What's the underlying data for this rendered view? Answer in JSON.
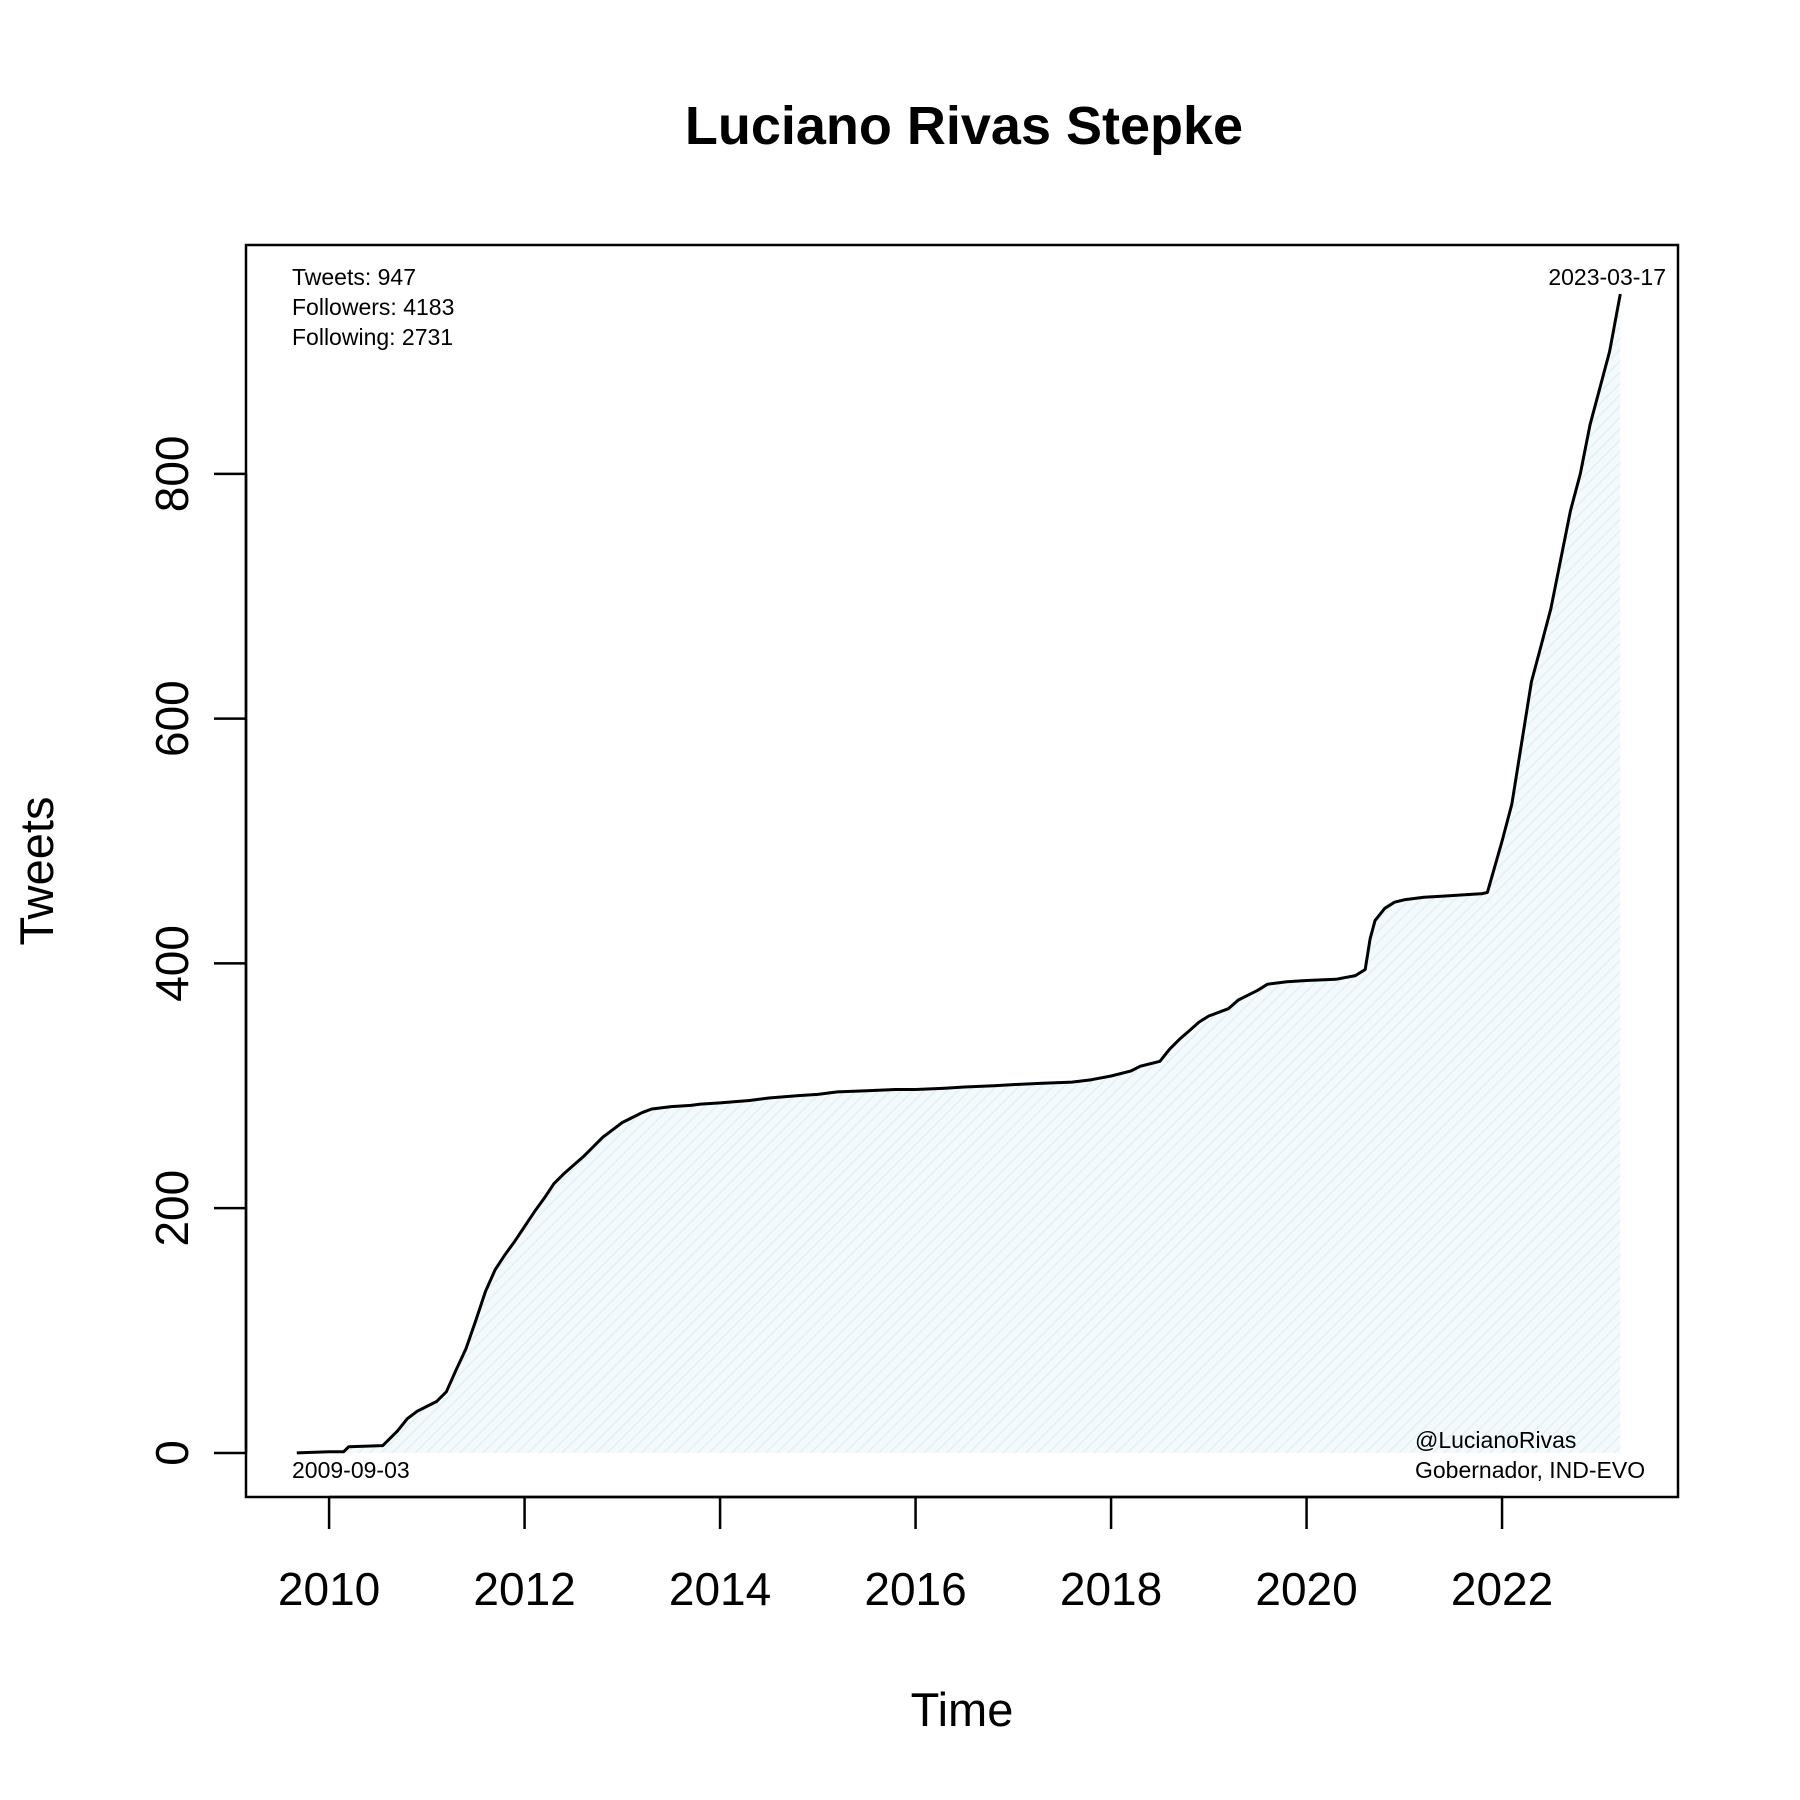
{
  "chart_data": {
    "type": "area",
    "title": "Luciano Rivas Stepke",
    "xlabel": "Time",
    "ylabel": "Tweets",
    "xlim": [
      2009.15,
      2023.8
    ],
    "ylim": [
      -36,
      987
    ],
    "x_ticks": [
      2010,
      2012,
      2014,
      2016,
      2018,
      2020,
      2022
    ],
    "x_tick_labels": [
      "2010",
      "2012",
      "2014",
      "2016",
      "2018",
      "2020",
      "2022"
    ],
    "y_ticks": [
      0,
      200,
      400,
      600,
      800
    ],
    "y_tick_labels": [
      "0",
      "200",
      "400",
      "600",
      "800"
    ],
    "grid": false,
    "fill_color": "#e6f4f8",
    "line_color": "#000000",
    "series": [
      {
        "x": [
          2009.67,
          2010.0,
          2010.15,
          2010.2,
          2010.55,
          2010.6,
          2010.7,
          2010.8,
          2010.9,
          2011.0,
          2011.1,
          2011.2,
          2011.3,
          2011.4,
          2011.5,
          2011.6,
          2011.7,
          2011.8,
          2011.9,
          2012.0,
          2012.1,
          2012.2,
          2012.3,
          2012.4,
          2012.5,
          2012.6,
          2012.7,
          2012.8,
          2012.9,
          2013.0,
          2013.1,
          2013.2,
          2013.3,
          2013.5,
          2013.7,
          2013.8,
          2014.0,
          2014.3,
          2014.5,
          2014.8,
          2015.0,
          2015.2,
          2015.5,
          2015.8,
          2016.0,
          2016.3,
          2016.5,
          2016.8,
          2017.0,
          2017.3,
          2017.6,
          2017.8,
          2018.0,
          2018.2,
          2018.3,
          2018.5,
          2018.6,
          2018.7,
          2018.8,
          2018.9,
          2019.0,
          2019.2,
          2019.3,
          2019.5,
          2019.6,
          2019.8,
          2020.0,
          2020.3,
          2020.5,
          2020.6,
          2020.65,
          2020.7,
          2020.8,
          2020.9,
          2021.0,
          2021.2,
          2021.4,
          2021.6,
          2021.8,
          2021.85,
          2022.0,
          2022.1,
          2022.2,
          2022.3,
          2022.4,
          2022.5,
          2022.6,
          2022.7,
          2022.8,
          2022.9,
          2023.0,
          2023.1,
          2023.21
        ],
        "y": [
          0,
          1,
          1,
          5,
          6,
          10,
          18,
          28,
          34,
          38,
          42,
          50,
          68,
          85,
          108,
          132,
          150,
          162,
          173,
          185,
          197,
          208,
          220,
          228,
          235,
          242,
          250,
          258,
          264,
          270,
          274,
          278,
          281,
          283,
          284,
          285,
          286,
          288,
          290,
          292,
          293,
          295,
          296,
          297,
          297,
          298,
          299,
          300,
          301,
          302,
          303,
          305,
          308,
          312,
          316,
          320,
          330,
          338,
          345,
          352,
          357,
          363,
          370,
          378,
          383,
          385,
          386,
          387,
          390,
          395,
          420,
          435,
          445,
          450,
          452,
          454,
          455,
          456,
          457,
          458,
          500,
          530,
          580,
          630,
          660,
          690,
          730,
          770,
          800,
          840,
          870,
          900,
          947
        ]
      }
    ],
    "annotations": {
      "stats": [
        "Tweets: 947",
        "Followers: 4183",
        "Following: 2731"
      ],
      "start_date": "2009-09-03",
      "end_date": "2023-03-17",
      "handle": "@LucianoRivas",
      "role": "Gobernador, IND-EVO"
    }
  }
}
